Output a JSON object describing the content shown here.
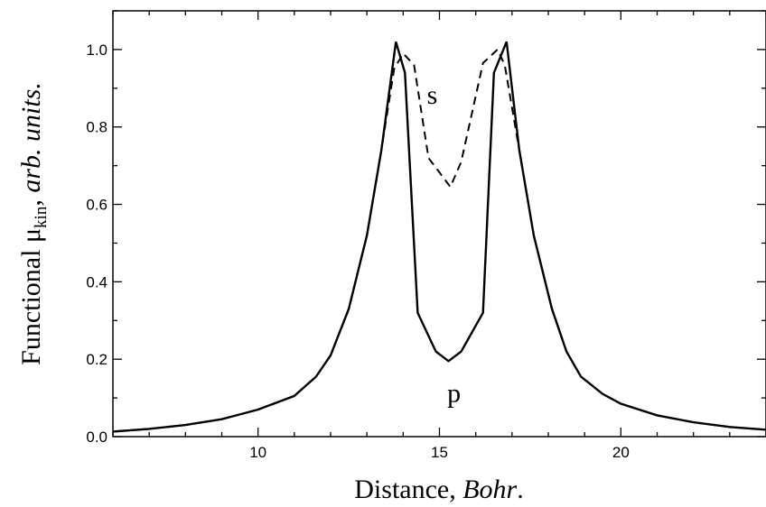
{
  "chart_data": {
    "type": "line",
    "title": "",
    "xlabel": {
      "prefix": "Distance, ",
      "italic": "Bohr",
      "suffix": "."
    },
    "ylabel": {
      "prefix": "Functional ",
      "mu": "μ",
      "sub": "kin",
      "comma": ", ",
      "italic": "arb. units."
    },
    "xlim": [
      6,
      24
    ],
    "ylim": [
      0,
      1.1
    ],
    "xticks": [
      10,
      15,
      20
    ],
    "xtick_labels": [
      "10",
      "15",
      "20"
    ],
    "yticks": [
      0.0,
      0.2,
      0.4,
      0.6,
      0.8,
      1.0
    ],
    "ytick_labels": [
      "0.0",
      "0.2",
      "0.4",
      "0.6",
      "0.8",
      "1.0"
    ],
    "grid": false,
    "series": [
      {
        "name": "s",
        "color": "#000000",
        "dash": "dashed",
        "label_at": [
          14.8,
          0.86
        ],
        "points": [
          [
            6.0,
            0.013
          ],
          [
            7.0,
            0.02
          ],
          [
            8.0,
            0.03
          ],
          [
            9.0,
            0.045
          ],
          [
            10.0,
            0.07
          ],
          [
            11.0,
            0.105
          ],
          [
            11.6,
            0.155
          ],
          [
            12.0,
            0.21
          ],
          [
            12.5,
            0.33
          ],
          [
            13.0,
            0.52
          ],
          [
            13.4,
            0.74
          ],
          [
            13.75,
            0.95
          ],
          [
            14.0,
            0.99
          ],
          [
            14.3,
            0.96
          ],
          [
            14.7,
            0.72
          ],
          [
            15.3,
            0.645
          ],
          [
            15.6,
            0.71
          ],
          [
            16.2,
            0.965
          ],
          [
            16.6,
            1.0
          ],
          [
            16.8,
            0.96
          ],
          [
            17.2,
            0.74
          ],
          [
            17.6,
            0.52
          ],
          [
            18.1,
            0.33
          ],
          [
            18.5,
            0.22
          ],
          [
            18.9,
            0.155
          ],
          [
            19.5,
            0.11
          ],
          [
            20.0,
            0.085
          ],
          [
            21.0,
            0.055
          ],
          [
            22.0,
            0.037
          ],
          [
            23.0,
            0.025
          ],
          [
            24.0,
            0.018
          ]
        ]
      },
      {
        "name": "p",
        "color": "#000000",
        "dash": "solid",
        "label_at": [
          15.4,
          0.09
        ],
        "points": [
          [
            6.0,
            0.013
          ],
          [
            7.0,
            0.02
          ],
          [
            8.0,
            0.03
          ],
          [
            9.0,
            0.045
          ],
          [
            10.0,
            0.07
          ],
          [
            11.0,
            0.105
          ],
          [
            11.6,
            0.155
          ],
          [
            12.0,
            0.21
          ],
          [
            12.5,
            0.33
          ],
          [
            13.0,
            0.52
          ],
          [
            13.4,
            0.74
          ],
          [
            13.8,
            1.02
          ],
          [
            14.05,
            0.94
          ],
          [
            14.4,
            0.32
          ],
          [
            14.9,
            0.22
          ],
          [
            15.25,
            0.195
          ],
          [
            15.6,
            0.22
          ],
          [
            16.2,
            0.32
          ],
          [
            16.5,
            0.94
          ],
          [
            16.85,
            1.02
          ],
          [
            17.2,
            0.74
          ],
          [
            17.6,
            0.52
          ],
          [
            18.1,
            0.33
          ],
          [
            18.5,
            0.22
          ],
          [
            18.9,
            0.155
          ],
          [
            19.5,
            0.11
          ],
          [
            20.0,
            0.085
          ],
          [
            21.0,
            0.055
          ],
          [
            22.0,
            0.037
          ],
          [
            23.0,
            0.025
          ],
          [
            24.0,
            0.018
          ]
        ]
      }
    ]
  }
}
